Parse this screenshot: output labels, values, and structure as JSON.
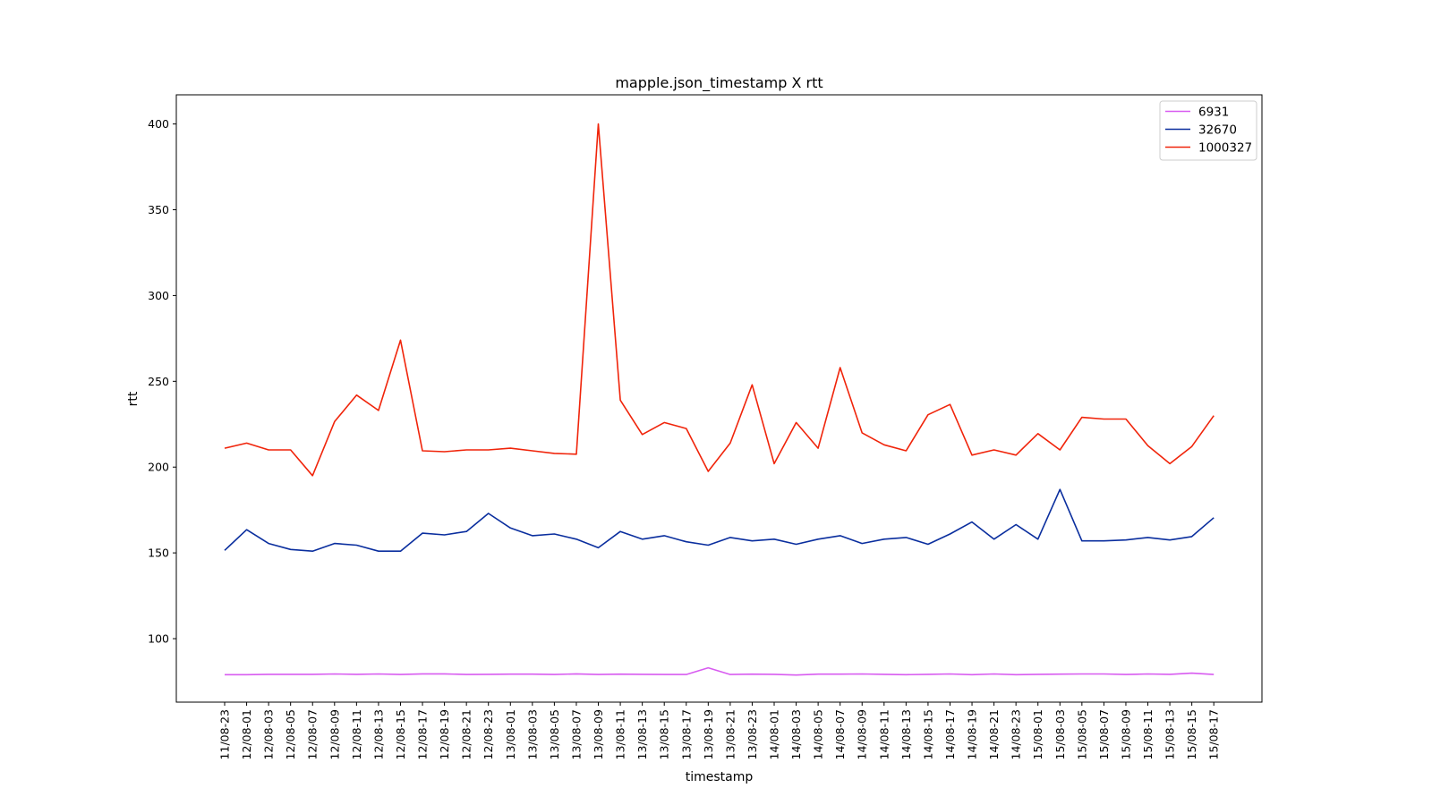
{
  "chart_data": {
    "type": "line",
    "title": "mapple.json_timestamp X rtt",
    "xlabel": "timestamp",
    "ylabel": "rtt",
    "ylim": [
      63,
      417
    ],
    "yticks": [
      100,
      150,
      200,
      250,
      300,
      350,
      400
    ],
    "grid": false,
    "legend_position": "top-right",
    "categories": [
      "11/08-23",
      "12/08-01",
      "12/08-03",
      "12/08-05",
      "12/08-07",
      "12/08-09",
      "12/08-11",
      "12/08-13",
      "12/08-15",
      "12/08-17",
      "12/08-19",
      "12/08-21",
      "12/08-23",
      "13/08-01",
      "13/08-03",
      "13/08-05",
      "13/08-07",
      "13/08-09",
      "13/08-11",
      "13/08-13",
      "13/08-15",
      "13/08-17",
      "13/08-19",
      "13/08-21",
      "13/08-23",
      "14/08-01",
      "14/08-03",
      "14/08-05",
      "14/08-07",
      "14/08-09",
      "14/08-11",
      "14/08-13",
      "14/08-15",
      "14/08-17",
      "14/08-19",
      "14/08-21",
      "14/08-23",
      "15/08-01",
      "15/08-03",
      "15/08-05",
      "15/08-07",
      "15/08-09",
      "15/08-11",
      "15/08-13",
      "15/08-15",
      "15/08-17"
    ],
    "series": [
      {
        "name": "6931",
        "color": "#d85cf0",
        "values": [
          79,
          79,
          79.2,
          79.2,
          79.2,
          79.4,
          79.2,
          79.4,
          79.1,
          79.5,
          79.5,
          79.1,
          79.2,
          79.3,
          79.3,
          79.1,
          79.5,
          79.1,
          79.3,
          79.2,
          79.1,
          79.1,
          83,
          79.1,
          79.3,
          79.2,
          78.8,
          79.3,
          79.3,
          79.4,
          79.2,
          79,
          79.2,
          79.4,
          79,
          79.4,
          79,
          79.2,
          79.3,
          79.4,
          79.4,
          79.1,
          79.4,
          79.2,
          79.9,
          79.1
        ]
      },
      {
        "name": "32670",
        "color": "#0a2e9e",
        "values": [
          151.5,
          163.5,
          155.5,
          152,
          151,
          155.5,
          154.5,
          151,
          151,
          161.5,
          160.5,
          162.5,
          173,
          164.5,
          160,
          161,
          158,
          153,
          162.5,
          158,
          160,
          156.5,
          154.5,
          159,
          157,
          158,
          155,
          158,
          160,
          155.5,
          158,
          159,
          155,
          161,
          168,
          158,
          166.5,
          158,
          187,
          157,
          157,
          157.5,
          159,
          157.5,
          159.5,
          170.5
        ]
      },
      {
        "name": "1000327",
        "color": "#f0240a",
        "values": [
          211,
          214,
          210,
          210,
          195,
          226.5,
          242,
          233,
          274,
          209.5,
          209,
          210,
          210,
          211,
          209.5,
          208,
          207.5,
          400,
          239,
          219,
          226,
          222.5,
          197.5,
          214,
          248,
          202,
          226,
          211,
          258,
          220,
          213,
          209.5,
          230.5,
          236.5,
          207,
          210,
          207,
          219.5,
          210,
          229,
          228,
          228,
          212.5,
          202,
          212,
          230
        ]
      }
    ]
  }
}
